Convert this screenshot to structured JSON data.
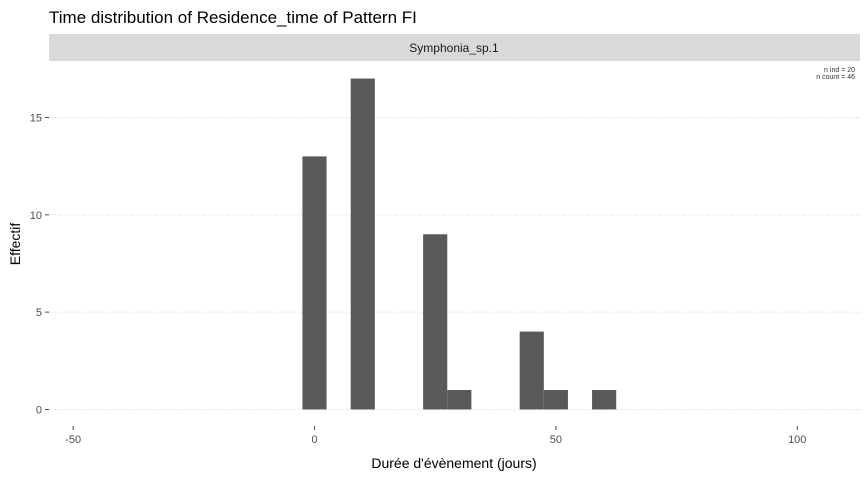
{
  "chart_data": {
    "type": "bar",
    "title": "Time distribution of Residence_time of Pattern FI",
    "facet_label": "Symphonia_sp.1",
    "xlabel": "Durée d'évènement (jours)",
    "ylabel": "Effectif",
    "xlim": [
      -55,
      113
    ],
    "ylim": [
      -0.85,
      17.85
    ],
    "x_ticks": [
      -50,
      0,
      50,
      100
    ],
    "y_ticks": [
      0,
      5,
      10,
      15
    ],
    "bin_width": 5,
    "bins": [
      {
        "x": 0,
        "count": 13
      },
      {
        "x": 5,
        "count": 0
      },
      {
        "x": 10,
        "count": 17
      },
      {
        "x": 15,
        "count": 0
      },
      {
        "x": 20,
        "count": 0
      },
      {
        "x": 25,
        "count": 9
      },
      {
        "x": 30,
        "count": 1
      },
      {
        "x": 35,
        "count": 0
      },
      {
        "x": 40,
        "count": 0
      },
      {
        "x": 45,
        "count": 4
      },
      {
        "x": 50,
        "count": 1
      },
      {
        "x": 55,
        "count": 0
      },
      {
        "x": 60,
        "count": 1
      }
    ],
    "annotations": [
      "n ind =  20",
      "n count =  46"
    ],
    "grid": true,
    "bar_color": "#595959"
  }
}
